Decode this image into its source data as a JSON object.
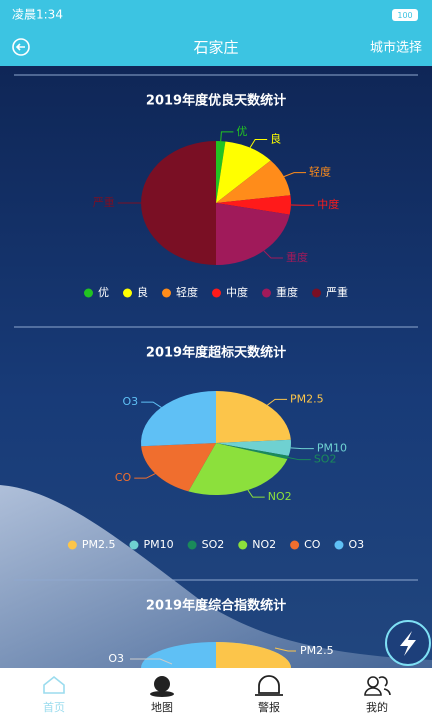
{
  "status_bar": {
    "time": "凌晨1:34",
    "battery": "100"
  },
  "header": {
    "title": "石家庄",
    "action": "城市选择"
  },
  "chart_data": [
    {
      "type": "pie",
      "title": "2019年度优良天数统计",
      "categories": [
        "优",
        "良",
        "轻度",
        "中度",
        "重度",
        "严重"
      ],
      "values": [
        2,
        11,
        10,
        5,
        22,
        50
      ],
      "colors": [
        "#22c322",
        "#ffff00",
        "#ff8c1a",
        "#ff1a1a",
        "#a01a5a",
        "#7a0f24"
      ]
    },
    {
      "type": "pie",
      "title": "2019年度超标天数统计",
      "categories": [
        "PM2.5",
        "PM10",
        "SO2",
        "NO2",
        "CO",
        "O3"
      ],
      "values": [
        24,
        5,
        1,
        26,
        18,
        26
      ],
      "colors": [
        "#fcc54a",
        "#6fd1d1",
        "#1a8a5a",
        "#8ce03c",
        "#f06e2e",
        "#5fc0f5"
      ]
    }
  ],
  "partial_chart": {
    "title": "2019年度综合指数统计",
    "labels": [
      "O3",
      "PM2.5"
    ]
  },
  "nav": [
    "首页",
    "地图",
    "警报",
    "我的"
  ]
}
